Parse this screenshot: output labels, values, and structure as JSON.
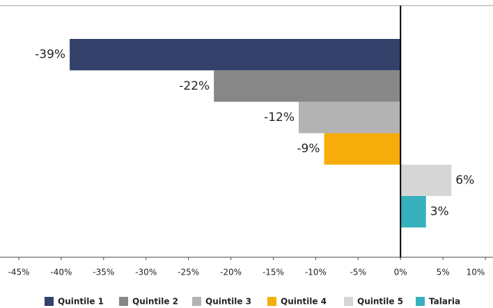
{
  "chart_data": {
    "type": "bar",
    "orientation": "horizontal",
    "series": [
      {
        "name": "Quintile 1",
        "color": "#33416b",
        "values": [
          -39
        ],
        "value_labels": [
          "-39%"
        ]
      },
      {
        "name": "Quintile 2",
        "color": "#878787",
        "values": [
          -22
        ],
        "value_labels": [
          "-22%"
        ]
      },
      {
        "name": "Quintile 3",
        "color": "#b3b3b3",
        "values": [
          -12
        ],
        "value_labels": [
          "-12%"
        ]
      },
      {
        "name": "Quintile 4",
        "color": "#f6ad0a",
        "values": [
          -9
        ],
        "value_labels": [
          "-9%"
        ]
      },
      {
        "name": "Quintile 5",
        "color": "#d6d6d6",
        "values": [
          6
        ],
        "value_labels": [
          "6%"
        ]
      },
      {
        "name": "Talaria",
        "color": "#36b1bd",
        "values": [
          3
        ],
        "value_labels": [
          "3%"
        ]
      }
    ],
    "xlim": [
      -45,
      10
    ],
    "xticks": [
      {
        "value": -45,
        "label": "-45%"
      },
      {
        "value": -40,
        "label": "-40%"
      },
      {
        "value": -35,
        "label": "-35%"
      },
      {
        "value": -30,
        "label": "-30%"
      },
      {
        "value": -25,
        "label": "-25%"
      },
      {
        "value": -20,
        "label": "-20%"
      },
      {
        "value": -15,
        "label": "-15%"
      },
      {
        "value": -10,
        "label": "-10%"
      },
      {
        "value": -5,
        "label": "-5%"
      },
      {
        "value": 0,
        "label": "0%"
      },
      {
        "value": 5,
        "label": "5%"
      },
      {
        "value": 10,
        "label": "10%"
      }
    ],
    "legend": "bottom"
  }
}
